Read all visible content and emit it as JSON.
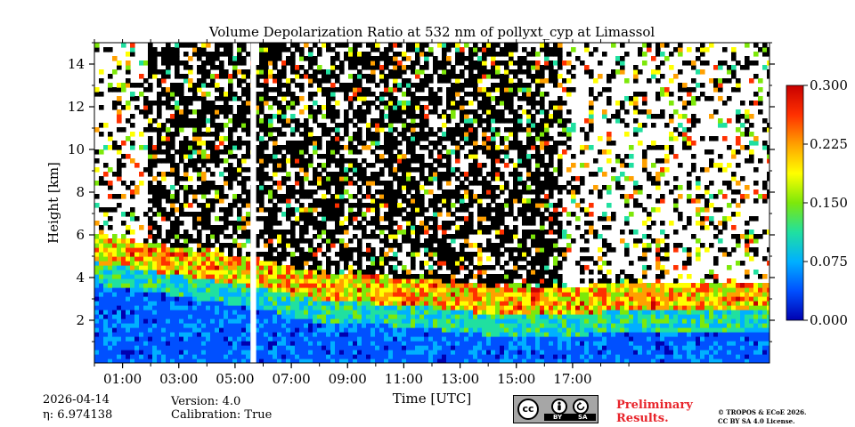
{
  "chart_data": {
    "type": "heatmap",
    "title": "Volume Depolarization Ratio at 532 nm of pollyxt_cyp at Limassol",
    "xlabel": "Time [UTC]",
    "ylabel": "Height [km]",
    "xlim": [
      0,
      24
    ],
    "ylim": [
      0,
      15
    ],
    "x_ticks": [
      "01:00",
      "03:00",
      "05:00",
      "07:00",
      "09:00",
      "11:00",
      "13:00",
      "15:00",
      "17:00"
    ],
    "x_tick_hours": [
      1,
      3,
      5,
      7,
      9,
      11,
      13,
      15,
      17
    ],
    "y_ticks": [
      "2",
      "4",
      "6",
      "8",
      "10",
      "12",
      "14"
    ],
    "y_tick_values": [
      2,
      4,
      6,
      8,
      10,
      12,
      14
    ],
    "colorbar": {
      "min": 0.0,
      "max": 0.3,
      "ticks": [
        "0.000",
        "0.075",
        "0.150",
        "0.225",
        "0.300"
      ],
      "tick_values": [
        0.0,
        0.075,
        0.15,
        0.225,
        0.3
      ],
      "colormap": [
        "#0000b0",
        "#0050ff",
        "#00b0ff",
        "#20e0a0",
        "#7de80a",
        "#ffff00",
        "#ffa000",
        "#ff3000",
        "#c80000"
      ]
    },
    "aerosol_layer_top_km": [
      {
        "hour": 0,
        "km": 4.6
      },
      {
        "hour": 2,
        "km": 4.2
      },
      {
        "hour": 4,
        "km": 3.8
      },
      {
        "hour": 6,
        "km": 3.4
      },
      {
        "hour": 8,
        "km": 2.8
      },
      {
        "hour": 10,
        "km": 2.7
      },
      {
        "hour": 12,
        "km": 2.5
      },
      {
        "hour": 14,
        "km": 2.2
      },
      {
        "hour": 16,
        "km": 2.1
      },
      {
        "hour": 18,
        "km": 2.3
      },
      {
        "hour": 19,
        "km": 2.4
      }
    ],
    "data_gap_hours": [
      5.55,
      5.75
    ]
  },
  "info": {
    "date": "2026-04-14",
    "eta_label": "η: 6.974138",
    "version": "Version: 4.0",
    "calibration": "Calibration: True",
    "preliminary_line1": "Preliminary",
    "preliminary_line2": "Results.",
    "copyright_line1": "© TROPOS & ECoE 2026.",
    "copyright_line2": "CC BY SA 4.0 License."
  },
  "license_badge": {
    "cc": "cc",
    "by": "BY",
    "sa": "SA",
    "icon_main": "cc-icon",
    "icon_by": "person-icon",
    "icon_sa": "share-alike-icon"
  }
}
